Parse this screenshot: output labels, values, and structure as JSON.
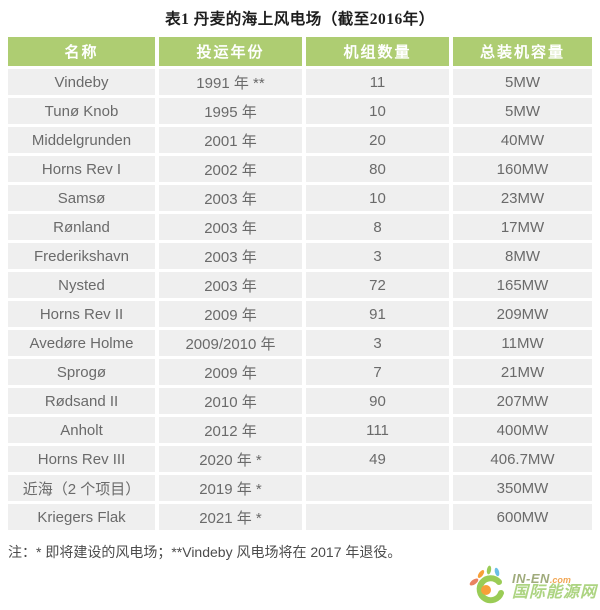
{
  "title": "表1 丹麦的海上风电场（截至2016年）",
  "table": {
    "headers": [
      "名称",
      "投运年份",
      "机组数量",
      "总装机容量"
    ],
    "rows": [
      [
        "Vindeby",
        "1991 年 **",
        "11",
        "5MW"
      ],
      [
        "Tunø Knob",
        "1995 年",
        "10",
        "5MW"
      ],
      [
        "Middelgrunden",
        "2001 年",
        "20",
        "40MW"
      ],
      [
        "Horns Rev I",
        "2002 年",
        "80",
        "160MW"
      ],
      [
        "Samsø",
        "2003 年",
        "10",
        "23MW"
      ],
      [
        "Rønland",
        "2003 年",
        "8",
        "17MW"
      ],
      [
        "Frederikshavn",
        "2003 年",
        "3",
        "8MW"
      ],
      [
        "Nysted",
        "2003 年",
        "72",
        "165MW"
      ],
      [
        "Horns Rev II",
        "2009 年",
        "91",
        "209MW"
      ],
      [
        "Avedøre Holme",
        "2009/2010 年",
        "3",
        "11MW"
      ],
      [
        "Sprogø",
        "2009 年",
        "7",
        "21MW"
      ],
      [
        "Rødsand II",
        "2010 年",
        "90",
        "207MW"
      ],
      [
        "Anholt",
        "2012 年",
        "111",
        "400MW"
      ],
      [
        "Horns Rev III",
        "2020 年 *",
        "49",
        "406.7MW"
      ],
      [
        "近海（2 个项目）",
        "2019 年 *",
        "",
        "350MW"
      ],
      [
        "Kriegers Flak",
        "2021 年 *",
        "",
        "600MW"
      ]
    ]
  },
  "footnote": "注：* 即将建设的风电场；**Vindeby 风电场将在 2017 年退役。",
  "watermark": {
    "site": "IN-EN",
    "tld": ".com",
    "name": "国际能源网"
  },
  "colors": {
    "header_bg": "#aecd72",
    "header_text": "#ffffff",
    "cell_bg": "#efefef",
    "cell_text": "#6a6a6a",
    "watermark_green": "#8dc63f",
    "watermark_orange": "#f7941d",
    "watermark_blue": "#57b7e2",
    "watermark_red": "#e8714c"
  }
}
